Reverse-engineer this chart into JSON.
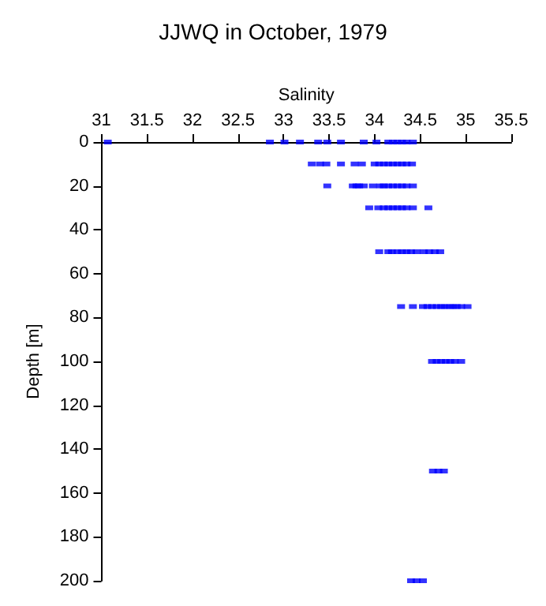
{
  "chart_data": {
    "type": "scatter",
    "title": "JJWQ in October, 1979",
    "xlabel": "Salinity",
    "ylabel": "Depth [m]",
    "x": [
      31.07,
      32.85,
      33.01,
      33.18,
      33.38,
      33.48,
      33.63,
      33.88,
      34.02,
      34.15,
      34.2,
      34.25,
      34.3,
      34.35,
      34.42,
      33.31,
      33.4,
      33.47,
      33.63,
      33.78,
      33.86,
      34.0,
      34.05,
      34.1,
      34.15,
      34.2,
      34.25,
      34.3,
      34.35,
      34.41,
      33.48,
      33.76,
      33.8,
      33.83,
      33.88,
      33.98,
      34.06,
      34.1,
      34.15,
      34.2,
      34.25,
      34.3,
      34.35,
      34.42,
      33.94,
      34.04,
      34.1,
      34.15,
      34.2,
      34.25,
      34.3,
      34.35,
      34.42,
      34.59,
      34.05,
      34.15,
      34.19,
      34.25,
      34.3,
      34.35,
      34.4,
      34.46,
      34.54,
      34.6,
      34.66,
      34.72,
      34.29,
      34.42,
      34.53,
      34.58,
      34.63,
      34.68,
      34.73,
      34.77,
      34.82,
      34.86,
      34.9,
      34.95,
      35.02,
      34.63,
      34.68,
      34.73,
      34.78,
      34.83,
      34.88,
      34.95,
      34.64,
      34.7,
      34.76,
      34.4,
      34.46,
      34.53
    ],
    "values": [
      0,
      0,
      0,
      0,
      0,
      0,
      0,
      0,
      0,
      0,
      0,
      0,
      0,
      0,
      0,
      10,
      10,
      10,
      10,
      10,
      10,
      10,
      10,
      10,
      10,
      10,
      10,
      10,
      10,
      10,
      20,
      20,
      20,
      20,
      20,
      20,
      20,
      20,
      20,
      20,
      20,
      20,
      20,
      20,
      30,
      30,
      30,
      30,
      30,
      30,
      30,
      30,
      30,
      30,
      50,
      50,
      50,
      50,
      50,
      50,
      50,
      50,
      50,
      50,
      50,
      50,
      75,
      75,
      75,
      75,
      75,
      75,
      75,
      75,
      75,
      75,
      75,
      75,
      75,
      100,
      100,
      100,
      100,
      100,
      100,
      100,
      150,
      150,
      150,
      200,
      200,
      200
    ],
    "color": "#0000ff",
    "marker": "square",
    "xlim": [
      31,
      35.5
    ],
    "xticks": [
      31,
      31.5,
      32,
      32.5,
      33,
      33.5,
      34,
      34.5,
      35,
      35.5
    ],
    "ylim": [
      200,
      0
    ],
    "yticks": [
      0,
      20,
      40,
      60,
      80,
      100,
      120,
      140,
      160,
      180,
      200
    ]
  }
}
